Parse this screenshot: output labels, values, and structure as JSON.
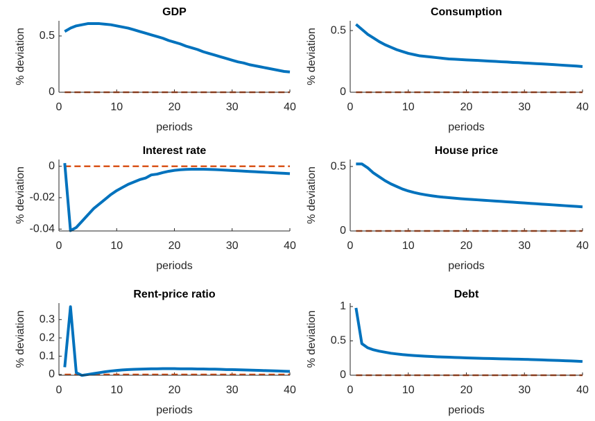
{
  "chart_data": [
    {
      "type": "line",
      "title": "GDP",
      "xlabel": "periods",
      "ylabel": "% deviation",
      "x": [
        1,
        2,
        3,
        4,
        5,
        6,
        7,
        8,
        9,
        10,
        11,
        12,
        13,
        14,
        15,
        16,
        17,
        18,
        19,
        20,
        21,
        22,
        23,
        24,
        25,
        26,
        27,
        28,
        29,
        30,
        31,
        32,
        33,
        34,
        35,
        36,
        37,
        38,
        39,
        40
      ],
      "values": [
        0.54,
        0.57,
        0.59,
        0.6,
        0.61,
        0.61,
        0.61,
        0.605,
        0.6,
        0.59,
        0.58,
        0.57,
        0.555,
        0.54,
        0.525,
        0.51,
        0.495,
        0.48,
        0.46,
        0.445,
        0.43,
        0.41,
        0.395,
        0.38,
        0.36,
        0.345,
        0.33,
        0.315,
        0.3,
        0.285,
        0.27,
        0.26,
        0.245,
        0.235,
        0.225,
        0.215,
        0.205,
        0.195,
        0.185,
        0.18
      ],
      "color": "#0072bd",
      "hline": {
        "value": 0,
        "color": "#d95319"
      },
      "xlim": [
        0,
        40
      ],
      "xticks": [
        0,
        10,
        20,
        30,
        40
      ],
      "ylim": [
        0,
        0.635
      ],
      "yticks": [
        0,
        0.5
      ]
    },
    {
      "type": "line",
      "title": "Consumption",
      "xlabel": "periods",
      "ylabel": "% deviation",
      "x": [
        1,
        2,
        3,
        4,
        5,
        6,
        7,
        8,
        9,
        10,
        11,
        12,
        13,
        14,
        15,
        16,
        17,
        18,
        19,
        20,
        21,
        22,
        23,
        24,
        25,
        26,
        27,
        28,
        29,
        30,
        31,
        32,
        33,
        34,
        35,
        36,
        37,
        38,
        39,
        40
      ],
      "values": [
        0.55,
        0.51,
        0.47,
        0.44,
        0.41,
        0.385,
        0.365,
        0.345,
        0.33,
        0.315,
        0.305,
        0.295,
        0.29,
        0.285,
        0.28,
        0.275,
        0.27,
        0.268,
        0.265,
        0.262,
        0.26,
        0.258,
        0.255,
        0.252,
        0.25,
        0.247,
        0.245,
        0.242,
        0.24,
        0.237,
        0.235,
        0.232,
        0.23,
        0.227,
        0.224,
        0.221,
        0.218,
        0.215,
        0.212,
        0.208
      ],
      "color": "#0072bd",
      "hline": {
        "value": 0,
        "color": "#d95319"
      },
      "xlim": [
        0,
        40
      ],
      "xticks": [
        0,
        10,
        20,
        30,
        40
      ],
      "ylim": [
        0,
        0.579
      ],
      "yticks": [
        0,
        0.5
      ]
    },
    {
      "type": "line",
      "title": "Interest rate",
      "xlabel": "periods",
      "ylabel": "% deviation",
      "x": [
        1,
        2,
        3,
        4,
        5,
        6,
        7,
        8,
        9,
        10,
        11,
        12,
        13,
        14,
        15,
        16,
        17,
        18,
        19,
        20,
        21,
        22,
        23,
        24,
        25,
        26,
        27,
        28,
        29,
        30,
        31,
        32,
        33,
        34,
        35,
        36,
        37,
        38,
        39,
        40
      ],
      "values": [
        0.002,
        -0.041,
        -0.039,
        -0.035,
        -0.031,
        -0.027,
        -0.024,
        -0.021,
        -0.018,
        -0.0155,
        -0.0135,
        -0.0115,
        -0.01,
        -0.0085,
        -0.0075,
        -0.0055,
        -0.005,
        -0.004,
        -0.0032,
        -0.0026,
        -0.0022,
        -0.002,
        -0.0019,
        -0.0019,
        -0.0019,
        -0.002,
        -0.0021,
        -0.0023,
        -0.0025,
        -0.0027,
        -0.0029,
        -0.0031,
        -0.0033,
        -0.0035,
        -0.0037,
        -0.0039,
        -0.0041,
        -0.0043,
        -0.0045,
        -0.0047
      ],
      "color": "#0072bd",
      "hline": {
        "value": 0,
        "color": "#d95319"
      },
      "xlim": [
        0,
        40
      ],
      "xticks": [
        0,
        10,
        20,
        30,
        40
      ],
      "ylim": [
        -0.0412,
        0.0043
      ],
      "yticks": [
        -0.04,
        -0.02,
        0
      ]
    },
    {
      "type": "line",
      "title": "House price",
      "xlabel": "periods",
      "ylabel": "% deviation",
      "x": [
        1,
        2,
        3,
        4,
        5,
        6,
        7,
        8,
        9,
        10,
        11,
        12,
        13,
        14,
        15,
        16,
        17,
        18,
        19,
        20,
        21,
        22,
        23,
        24,
        25,
        26,
        27,
        28,
        29,
        30,
        31,
        32,
        33,
        34,
        35,
        36,
        37,
        38,
        39,
        40
      ],
      "values": [
        0.52,
        0.52,
        0.49,
        0.45,
        0.42,
        0.39,
        0.365,
        0.345,
        0.325,
        0.31,
        0.298,
        0.288,
        0.28,
        0.273,
        0.267,
        0.262,
        0.258,
        0.254,
        0.25,
        0.247,
        0.244,
        0.241,
        0.238,
        0.235,
        0.232,
        0.229,
        0.226,
        0.223,
        0.22,
        0.217,
        0.214,
        0.211,
        0.208,
        0.205,
        0.202,
        0.199,
        0.196,
        0.193,
        0.19,
        0.187
      ],
      "color": "#0072bd",
      "hline": {
        "value": 0,
        "color": "#d95319"
      },
      "xlim": [
        0,
        40
      ],
      "xticks": [
        0,
        10,
        20,
        30,
        40
      ],
      "ylim": [
        0,
        0.554
      ],
      "yticks": [
        0,
        0.5
      ]
    },
    {
      "type": "line",
      "title": "Rent-price ratio",
      "xlabel": "periods",
      "ylabel": "% deviation",
      "x": [
        1,
        2,
        3,
        4,
        5,
        6,
        7,
        8,
        9,
        10,
        11,
        12,
        13,
        14,
        15,
        16,
        17,
        18,
        19,
        20,
        21,
        22,
        23,
        24,
        25,
        26,
        27,
        28,
        29,
        30,
        31,
        32,
        33,
        34,
        35,
        36,
        37,
        38,
        39,
        40
      ],
      "values": [
        0.04,
        0.37,
        0.01,
        -0.005,
        0.0,
        0.005,
        0.01,
        0.015,
        0.019,
        0.022,
        0.025,
        0.027,
        0.028,
        0.029,
        0.03,
        0.031,
        0.031,
        0.032,
        0.032,
        0.032,
        0.031,
        0.031,
        0.031,
        0.03,
        0.03,
        0.029,
        0.029,
        0.028,
        0.027,
        0.027,
        0.026,
        0.025,
        0.024,
        0.023,
        0.022,
        0.021,
        0.02,
        0.019,
        0.018,
        0.017
      ],
      "color": "#0072bd",
      "hline": {
        "value": 0,
        "color": "#d95319"
      },
      "xlim": [
        0,
        40
      ],
      "xticks": [
        0,
        10,
        20,
        30,
        40
      ],
      "ylim": [
        -0.004,
        0.39
      ],
      "yticks": [
        0,
        0.1,
        0.2,
        0.3
      ]
    },
    {
      "type": "line",
      "title": "Debt",
      "xlabel": "periods",
      "ylabel": "% deviation",
      "x": [
        1,
        2,
        3,
        4,
        5,
        6,
        7,
        8,
        9,
        10,
        11,
        12,
        13,
        14,
        15,
        16,
        17,
        18,
        19,
        20,
        21,
        22,
        23,
        24,
        25,
        26,
        27,
        28,
        29,
        30,
        31,
        32,
        33,
        34,
        35,
        36,
        37,
        38,
        39,
        40
      ],
      "values": [
        0.98,
        0.46,
        0.4,
        0.37,
        0.35,
        0.335,
        0.32,
        0.31,
        0.3,
        0.293,
        0.287,
        0.281,
        0.276,
        0.272,
        0.268,
        0.265,
        0.262,
        0.259,
        0.256,
        0.253,
        0.25,
        0.247,
        0.245,
        0.243,
        0.241,
        0.239,
        0.237,
        0.235,
        0.233,
        0.231,
        0.229,
        0.226,
        0.223,
        0.22,
        0.217,
        0.214,
        0.211,
        0.208,
        0.205,
        0.2
      ],
      "color": "#0072bd",
      "hline": {
        "value": 0,
        "color": "#d95319"
      },
      "xlim": [
        0,
        40
      ],
      "xticks": [
        0,
        10,
        20,
        30,
        40
      ],
      "ylim": [
        0,
        1.05
      ],
      "yticks": [
        0,
        0.5,
        1
      ]
    }
  ]
}
